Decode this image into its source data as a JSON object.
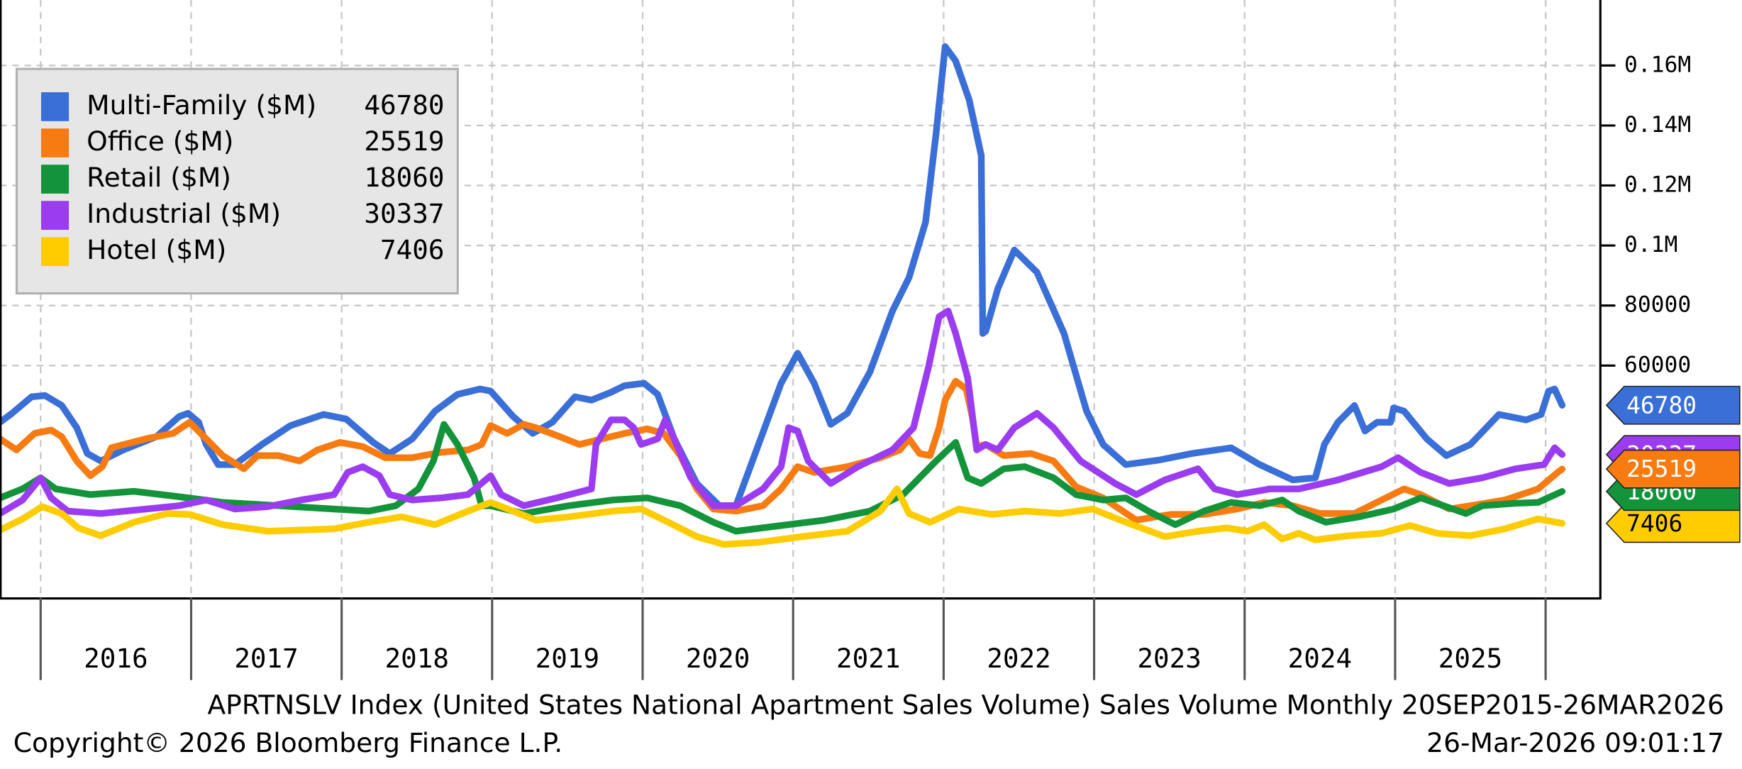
{
  "chart_data": {
    "type": "line",
    "title": "APRTNSLV Index (United States National Apartment Sales Volume) Sales Volume Monthly 20SEP2015-26MAR2026",
    "copyright": "Copyright© 2026 Bloomberg Finance L.P.",
    "timestamp": "26-Mar-2026 09:01:17",
    "xlim": [
      2015.73,
      2026.36
    ],
    "ylim": [
      -17400,
      181800
    ],
    "xticks": [
      {
        "value": 2016.5,
        "label": "2016"
      },
      {
        "value": 2017.5,
        "label": "2017"
      },
      {
        "value": 2018.5,
        "label": "2018"
      },
      {
        "value": 2019.5,
        "label": "2019"
      },
      {
        "value": 2020.5,
        "label": "2020"
      },
      {
        "value": 2021.5,
        "label": "2021"
      },
      {
        "value": 2022.5,
        "label": "2022"
      },
      {
        "value": 2023.5,
        "label": "2023"
      },
      {
        "value": 2024.5,
        "label": "2024"
      },
      {
        "value": 2025.5,
        "label": "2025"
      }
    ],
    "yticks": [
      60000,
      80000,
      {
        "value": 100000,
        "label": "0.1M"
      },
      {
        "value": 120000,
        "label": "0.12M"
      },
      {
        "value": 140000,
        "label": "0.14M"
      },
      {
        "value": 160000,
        "label": "0.16M"
      }
    ],
    "grid": true,
    "legend": "upper left",
    "series": [
      {
        "name": "Multi-Family ($M)",
        "color": "#3a6fd8",
        "x": [
          2015.73,
          2015.81,
          2015.94,
          2016.03,
          2016.14,
          2016.24,
          2016.31,
          2016.4,
          2016.55,
          2016.77,
          2016.92,
          2016.98,
          2017.05,
          2017.1,
          2017.18,
          2017.29,
          2017.47,
          2017.66,
          2017.88,
          2018.03,
          2018.21,
          2018.32,
          2018.47,
          2018.62,
          2018.77,
          2018.92,
          2018.99,
          2019.14,
          2019.27,
          2019.4,
          2019.55,
          2019.66,
          2019.79,
          2019.88,
          2020.01,
          2020.1,
          2020.21,
          2020.36,
          2020.51,
          2020.62,
          2020.77,
          2020.92,
          2021.03,
          2021.14,
          2021.25,
          2021.36,
          2021.51,
          2021.66,
          2021.77,
          2021.88,
          2021.95,
          2022.01,
          2022.08,
          2022.17,
          2022.25,
          2022.26,
          2022.28,
          2022.36,
          2022.47,
          2022.62,
          2022.8,
          2022.95,
          2023.06,
          2023.21,
          2023.43,
          2023.65,
          2023.91,
          2024.1,
          2024.32,
          2024.47,
          2024.53,
          2024.62,
          2024.73,
          2024.8,
          2024.88,
          2024.97,
          2024.99,
          2025.06,
          2025.21,
          2025.34,
          2025.5,
          2025.69,
          2025.87,
          2025.97,
          2026.02,
          2026.06,
          2026.11
        ],
        "values": [
          41100,
          44100,
          49600,
          50000,
          46700,
          39300,
          30700,
          28200,
          31900,
          36300,
          43000,
          44100,
          41100,
          33700,
          27000,
          27000,
          33700,
          40000,
          43700,
          42200,
          34400,
          30700,
          35600,
          44800,
          50400,
          52200,
          51500,
          43000,
          37400,
          41100,
          49600,
          48500,
          51100,
          53300,
          54100,
          50400,
          35600,
          20700,
          13300,
          13300,
          33700,
          54100,
          64100,
          54100,
          40400,
          44100,
          57800,
          78200,
          89300,
          107800,
          137400,
          166300,
          161500,
          148500,
          130000,
          70700,
          71500,
          85600,
          98500,
          91100,
          70700,
          44800,
          33700,
          27000,
          28500,
          30700,
          32600,
          27000,
          21900,
          22600,
          33700,
          41100,
          46700,
          38200,
          41100,
          41100,
          45900,
          44800,
          35600,
          30000,
          33700,
          43700,
          41900,
          43700,
          51500,
          52200,
          46780
        ]
      },
      {
        "name": "Office ($M)",
        "color": "#f77b10",
        "x": [
          2015.73,
          2015.84,
          2015.96,
          2016.07,
          2016.14,
          2016.24,
          2016.33,
          2016.41,
          2016.47,
          2016.7,
          2016.88,
          2016.99,
          2017.1,
          2017.21,
          2017.35,
          2017.44,
          2017.58,
          2017.72,
          2017.84,
          2017.99,
          2018.14,
          2018.29,
          2018.47,
          2018.66,
          2018.84,
          2018.93,
          2018.99,
          2019.1,
          2019.21,
          2019.29,
          2019.43,
          2019.58,
          2019.73,
          2019.88,
          2020.03,
          2020.14,
          2020.25,
          2020.36,
          2020.47,
          2020.62,
          2020.8,
          2020.92,
          2021.03,
          2021.14,
          2021.36,
          2021.58,
          2021.71,
          2021.77,
          2021.84,
          2021.91,
          2021.97,
          2022.01,
          2022.08,
          2022.15,
          2022.19,
          2022.22,
          2022.28,
          2022.4,
          2022.58,
          2022.73,
          2022.88,
          2023.06,
          2023.28,
          2023.51,
          2023.73,
          2023.95,
          2024.13,
          2024.32,
          2024.5,
          2024.73,
          2024.91,
          2025.06,
          2025.17,
          2025.36,
          2025.5,
          2025.73,
          2025.95,
          2026.08,
          2026.11
        ],
        "values": [
          35600,
          31900,
          37400,
          38500,
          36300,
          28200,
          23300,
          26300,
          32600,
          35600,
          37400,
          41100,
          35600,
          30000,
          25600,
          30000,
          30000,
          28200,
          31900,
          34400,
          33000,
          29300,
          29300,
          31100,
          31900,
          33700,
          40000,
          37400,
          40400,
          39300,
          36700,
          33700,
          35600,
          37400,
          38900,
          37400,
          30000,
          18900,
          12200,
          11500,
          13300,
          18900,
          26300,
          24400,
          26300,
          29300,
          31900,
          35600,
          30700,
          30000,
          39300,
          48500,
          54800,
          52200,
          43000,
          33000,
          33700,
          30000,
          30700,
          28200,
          19600,
          15900,
          8500,
          10400,
          10400,
          12200,
          14400,
          13300,
          10700,
          10700,
          15200,
          18900,
          17000,
          12200,
          13300,
          15200,
          18900,
          24400,
          25519
        ]
      },
      {
        "name": "Retail ($M)",
        "color": "#13943a",
        "x": [
          2015.73,
          2015.88,
          2016.0,
          2016.1,
          2016.33,
          2016.62,
          2016.92,
          2017.21,
          2017.58,
          2017.95,
          2018.18,
          2018.36,
          2018.51,
          2018.61,
          2018.68,
          2018.77,
          2018.88,
          2018.93,
          2018.99,
          2019.21,
          2019.51,
          2019.8,
          2020.03,
          2020.25,
          2020.47,
          2020.62,
          2020.92,
          2021.21,
          2021.51,
          2021.73,
          2021.95,
          2022.08,
          2022.16,
          2022.25,
          2022.4,
          2022.54,
          2022.73,
          2022.88,
          2023.06,
          2023.21,
          2023.36,
          2023.54,
          2023.73,
          2023.91,
          2024.1,
          2024.25,
          2024.36,
          2024.54,
          2024.76,
          2024.99,
          2025.17,
          2025.32,
          2025.47,
          2025.58,
          2025.8,
          2025.95,
          2026.11
        ],
        "values": [
          15900,
          18900,
          22600,
          18900,
          17000,
          18100,
          16300,
          14400,
          13300,
          12200,
          11500,
          13300,
          18900,
          28200,
          40400,
          33700,
          22600,
          13300,
          13300,
          10700,
          13300,
          15200,
          15900,
          13300,
          7800,
          4800,
          6700,
          8500,
          11500,
          17000,
          28200,
          34400,
          22600,
          20700,
          25600,
          26300,
          22600,
          17000,
          15200,
          15900,
          11500,
          7000,
          11500,
          14400,
          13300,
          15200,
          11500,
          7800,
          9600,
          12200,
          15900,
          13300,
          10700,
          13300,
          14100,
          14400,
          18060
        ]
      },
      {
        "name": "Industrial ($M)",
        "color": "#9b3cf0",
        "x": [
          2015.73,
          2015.88,
          2016.0,
          2016.07,
          2016.18,
          2016.4,
          2016.7,
          2016.92,
          2017.1,
          2017.29,
          2017.51,
          2017.73,
          2017.95,
          2018.04,
          2018.14,
          2018.25,
          2018.32,
          2018.47,
          2018.66,
          2018.84,
          2018.99,
          2019.06,
          2019.21,
          2019.43,
          2019.66,
          2019.69,
          2019.79,
          2019.88,
          2019.94,
          2019.99,
          2020.1,
          2020.15,
          2020.21,
          2020.32,
          2020.47,
          2020.62,
          2020.8,
          2020.92,
          2020.97,
          2021.03,
          2021.1,
          2021.25,
          2021.43,
          2021.66,
          2021.8,
          2021.9,
          2021.97,
          2022.03,
          2022.08,
          2022.16,
          2022.22,
          2022.28,
          2022.36,
          2022.47,
          2022.62,
          2022.73,
          2022.91,
          2023.14,
          2023.28,
          2023.47,
          2023.69,
          2023.8,
          2023.95,
          2024.17,
          2024.36,
          2024.62,
          2024.91,
          2025.02,
          2025.17,
          2025.36,
          2025.58,
          2025.8,
          2025.99,
          2026.06,
          2026.11
        ],
        "values": [
          10700,
          15200,
          22600,
          15900,
          11500,
          10700,
          12200,
          13300,
          15200,
          12200,
          13000,
          15200,
          17000,
          24400,
          26300,
          23300,
          17000,
          15200,
          15900,
          17000,
          23300,
          17000,
          13300,
          15900,
          18900,
          33700,
          41900,
          41900,
          39300,
          33700,
          35600,
          41900,
          35600,
          22600,
          13300,
          13300,
          18900,
          26300,
          39300,
          38200,
          28200,
          20700,
          26300,
          31900,
          39300,
          59600,
          76300,
          78200,
          70700,
          55900,
          31900,
          33700,
          31900,
          39300,
          44100,
          39300,
          28200,
          20700,
          17000,
          21900,
          25600,
          18900,
          17000,
          18900,
          18900,
          21900,
          26300,
          29300,
          24400,
          20700,
          22600,
          25600,
          27000,
          32600,
          30337
        ]
      },
      {
        "name": "Hotel ($M)",
        "color": "#ffcc00",
        "x": [
          2015.73,
          2015.88,
          2016.01,
          2016.14,
          2016.25,
          2016.4,
          2016.62,
          2016.84,
          2016.99,
          2017.21,
          2017.51,
          2017.95,
          2018.18,
          2018.4,
          2018.62,
          2018.84,
          2018.99,
          2019.14,
          2019.29,
          2019.51,
          2019.8,
          2019.99,
          2020.17,
          2020.36,
          2020.54,
          2020.77,
          2021.06,
          2021.36,
          2021.58,
          2021.69,
          2021.77,
          2021.91,
          2022.1,
          2022.32,
          2022.54,
          2022.77,
          2022.99,
          2023.21,
          2023.47,
          2023.69,
          2023.88,
          2024.02,
          2024.13,
          2024.25,
          2024.36,
          2024.47,
          2024.69,
          2024.91,
          2025.1,
          2025.28,
          2025.5,
          2025.73,
          2025.95,
          2026.11
        ],
        "values": [
          5200,
          8900,
          13000,
          10700,
          5900,
          3300,
          7800,
          10700,
          10400,
          7000,
          4800,
          5600,
          7800,
          9600,
          7000,
          11500,
          14400,
          11500,
          8500,
          9600,
          11500,
          12200,
          7800,
          3000,
          400,
          1100,
          3000,
          4800,
          11500,
          18900,
          10700,
          7800,
          12200,
          10400,
          11500,
          10700,
          12200,
          7800,
          3000,
          4800,
          5900,
          4800,
          7000,
          2200,
          4100,
          1900,
          3300,
          4100,
          6700,
          4100,
          3300,
          5600,
          8900,
          7406
        ]
      }
    ]
  }
}
